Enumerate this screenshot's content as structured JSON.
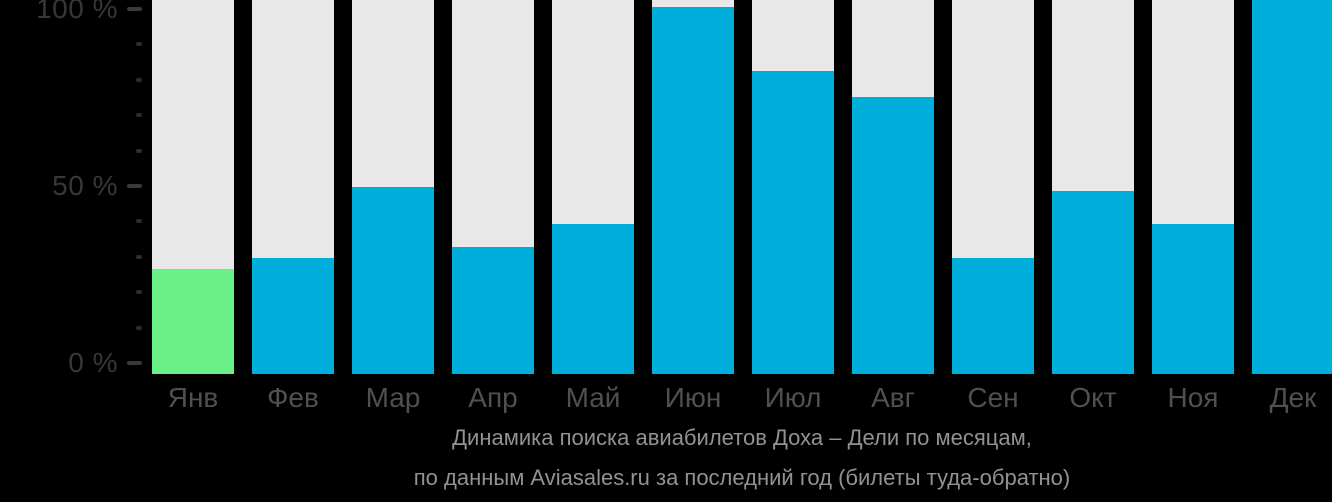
{
  "chart_data": {
    "type": "bar",
    "title": "Динамика поиска авиабилетов Доха – Дели по месяцам,",
    "subtitle": "по данным Aviasales.ru за последний год (билеты туда-обратно)",
    "categories": [
      "Янв",
      "Фев",
      "Мар",
      "Апр",
      "Май",
      "Июн",
      "Июл",
      "Авг",
      "Сен",
      "Окт",
      "Ноя",
      "Дек"
    ],
    "values": [
      28,
      31,
      50,
      34,
      40,
      98,
      81,
      74,
      31,
      49,
      40,
      100
    ],
    "unit": "%",
    "highlight_index": 0,
    "xlabel": "",
    "ylabel": "",
    "ylim": [
      0,
      100
    ],
    "yticks": [
      {
        "value": 100,
        "label": "100 %"
      },
      {
        "value": 50,
        "label": "50 %"
      },
      {
        "value": 0,
        "label": "0 %"
      }
    ],
    "minor_tick_step": 10,
    "grid": false,
    "legend": "none",
    "colors": {
      "background": "#000000",
      "bar_default": "#00AEDC",
      "bar_highlight": "#69F087",
      "track": "#E8E8E8",
      "axis_label": "#373737",
      "major_tick": "#3A3A3A",
      "minor_tick": "#2D2D2D",
      "month_label": "#505050",
      "caption": "#909293"
    }
  }
}
